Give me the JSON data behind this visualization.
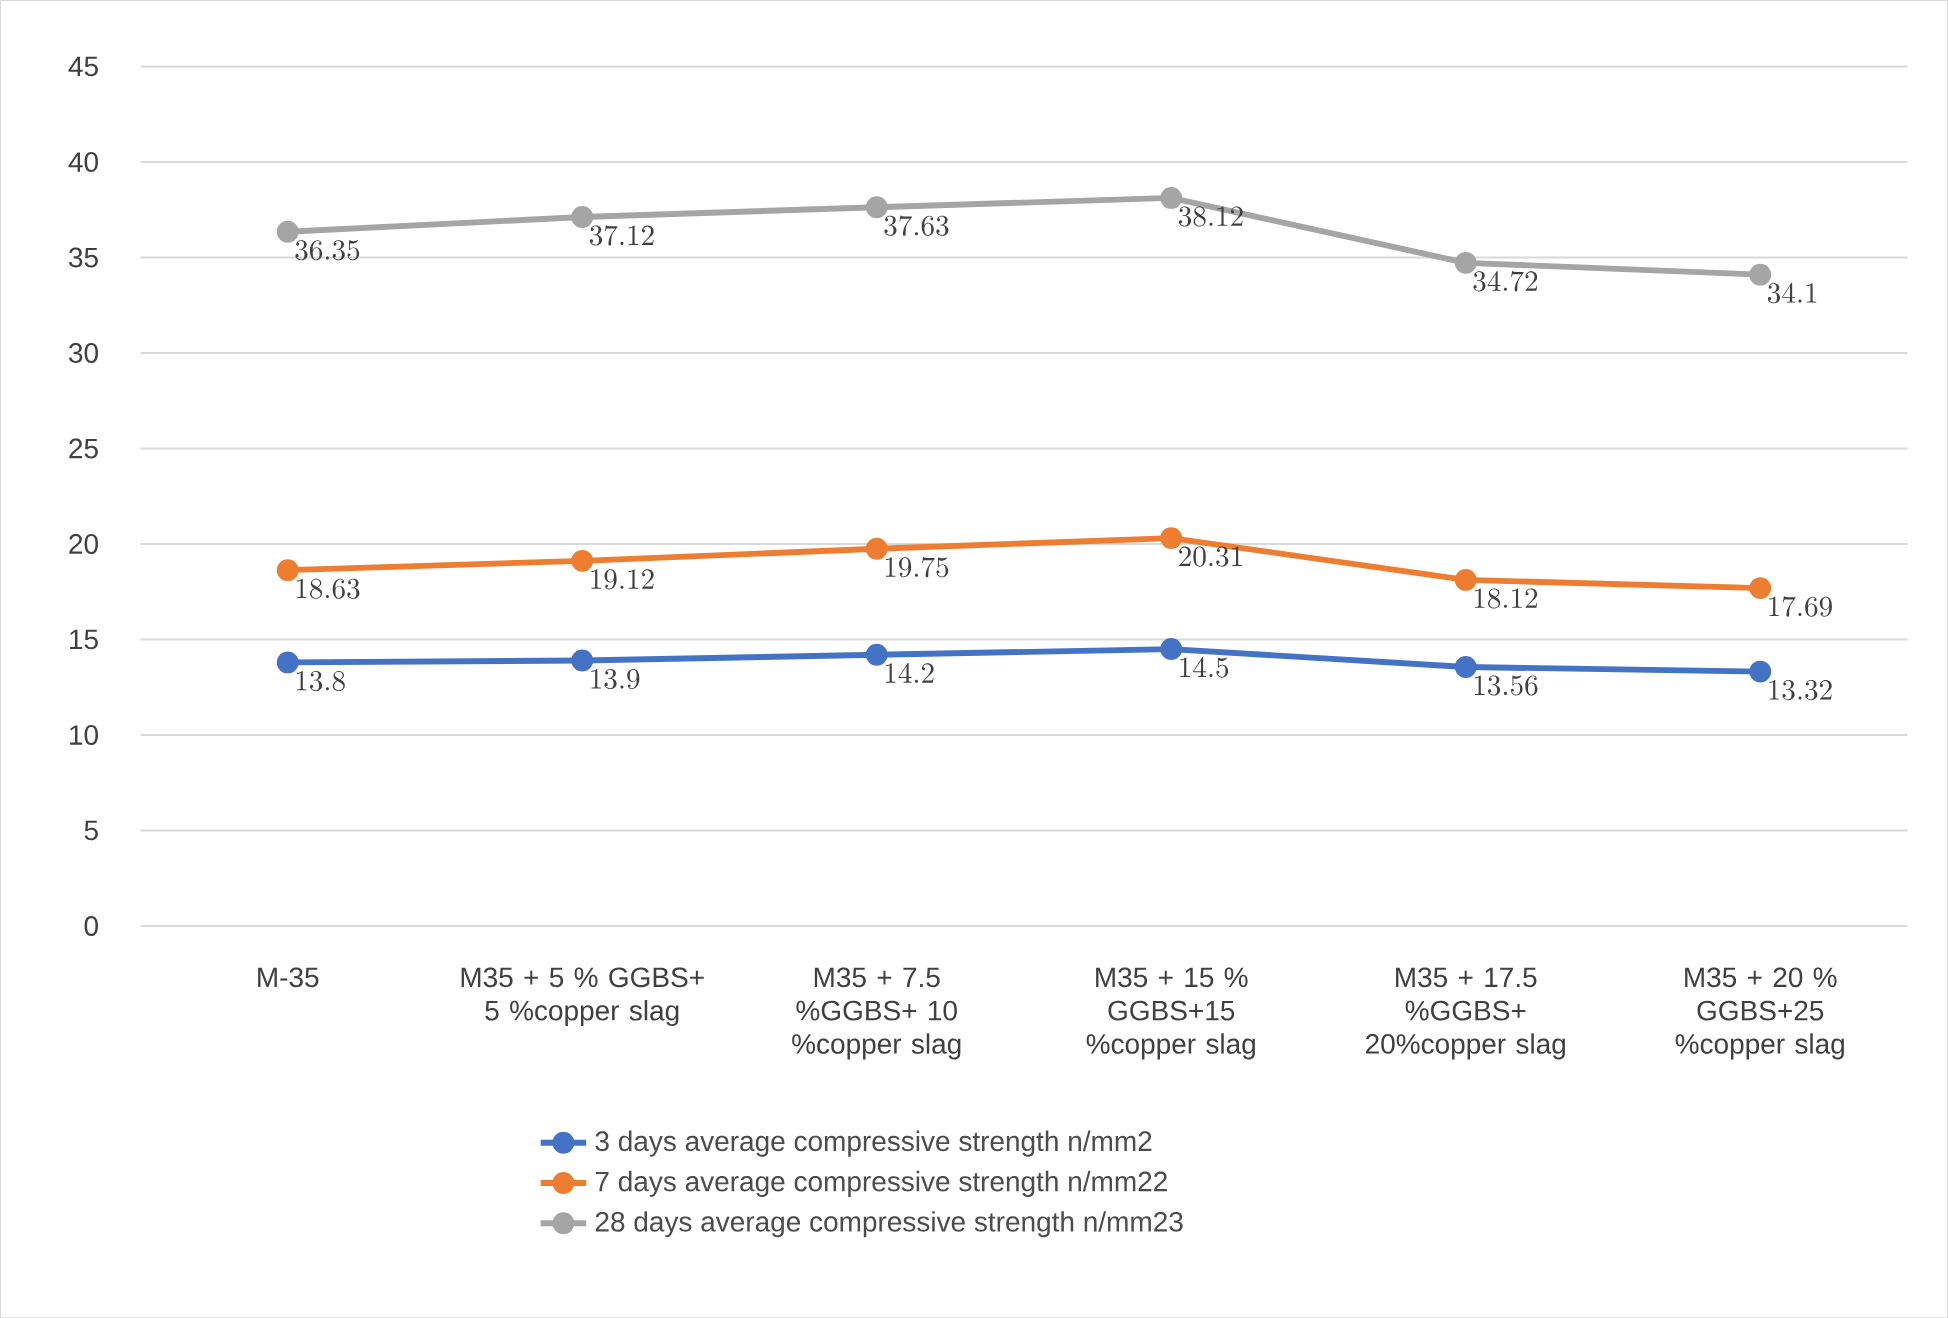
{
  "chart_data": {
    "type": "line",
    "categories": [
      "M-35",
      "M35 +  5 % GGBS+ 5 %copper slag",
      "M35 +  7.5 %GGBS+ 10 %copper slag",
      "M35 +  15 % GGBS+15 %copper slag",
      "M35 +  17.5 %GGBS+ 20%copper slag",
      "M35 +  20 % GGBS+25 %copper slag"
    ],
    "series": [
      {
        "name": "3 days average compressive strength n/mm2",
        "color": "#4472c4",
        "values": [
          13.8,
          13.9,
          14.2,
          14.5,
          13.56,
          13.32
        ]
      },
      {
        "name": "7 days average compressive strength n/mm22",
        "color": "#ed7d31",
        "values": [
          18.63,
          19.12,
          19.75,
          20.31,
          18.12,
          17.69
        ]
      },
      {
        "name": "28 days average compressive strength n/mm23",
        "color": "#a5a5a5",
        "values": [
          36.35,
          37.12,
          37.63,
          38.12,
          34.72,
          34.1
        ]
      }
    ],
    "ylim": [
      0,
      45
    ],
    "yticks": [
      0,
      5,
      10,
      15,
      20,
      25,
      30,
      35,
      40,
      45
    ],
    "grid": "y",
    "legend": "bottom",
    "marker": "circle",
    "line_style": "solid",
    "data_labels": true
  }
}
